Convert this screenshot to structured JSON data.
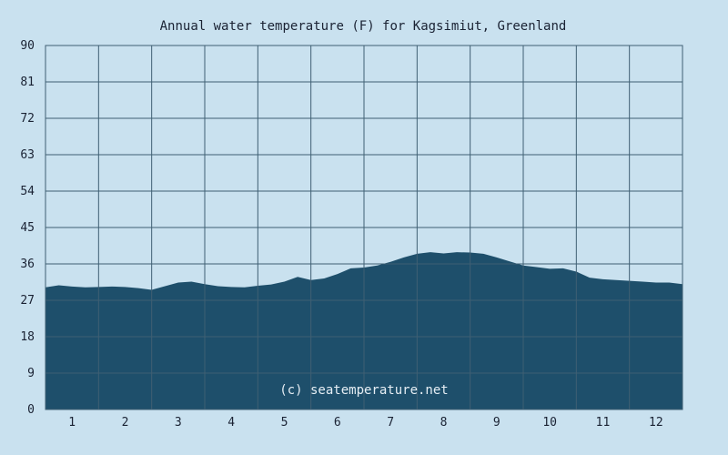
{
  "colors": {
    "background": "#c9e1ef",
    "area_fill": "#1e4f6b",
    "grid": "#3f5f73",
    "text": "#1a2233",
    "watermark": "#e6eef4"
  },
  "watermark": "(c) seatemperature.net",
  "chart_data": {
    "type": "area",
    "title": "Annual water temperature (F) for Kagsimiut, Greenland",
    "xlabel": "",
    "ylabel": "",
    "ylim": [
      0,
      90
    ],
    "xlim": [
      0.5,
      12.5
    ],
    "yticks": [
      0,
      9,
      18,
      27,
      36,
      45,
      54,
      63,
      72,
      81,
      90
    ],
    "yticklabels": [
      "0",
      "9",
      "18",
      "27",
      "36",
      "45",
      "54",
      "63",
      "72",
      "81",
      "90"
    ],
    "xticks": [
      1,
      2,
      3,
      4,
      5,
      6,
      7,
      8,
      9,
      10,
      11,
      12
    ],
    "xticklabels": [
      "1",
      "2",
      "3",
      "4",
      "5",
      "6",
      "7",
      "8",
      "9",
      "10",
      "11",
      "12"
    ],
    "grid": true,
    "legend": "none",
    "series": [
      {
        "x": [
          0.5,
          0.75,
          1.0,
          1.25,
          1.5,
          1.75,
          2.0,
          2.25,
          2.5,
          2.75,
          3.0,
          3.25,
          3.5,
          3.75,
          4.0,
          4.25,
          4.5,
          4.75,
          5.0,
          5.25,
          5.5,
          5.75,
          6.0,
          6.25,
          6.5,
          6.75,
          7.0,
          7.25,
          7.5,
          7.75,
          8.0,
          8.25,
          8.5,
          8.75,
          9.0,
          9.25,
          9.5,
          9.75,
          10.0,
          10.25,
          10.5,
          10.75,
          11.0,
          11.25,
          11.5,
          11.75,
          12.0,
          12.25,
          12.5
        ],
        "values": [
          30.2,
          30.7,
          30.4,
          30.2,
          30.3,
          30.4,
          30.3,
          30.0,
          29.6,
          30.5,
          31.4,
          31.6,
          31.0,
          30.5,
          30.3,
          30.2,
          30.6,
          30.9,
          31.6,
          32.8,
          32.0,
          32.4,
          33.5,
          34.9,
          35.1,
          35.6,
          36.5,
          37.6,
          38.5,
          38.9,
          38.6,
          38.9,
          38.8,
          38.5,
          37.6,
          36.6,
          35.6,
          35.2,
          34.8,
          34.9,
          34.1,
          32.6,
          32.2,
          32.0,
          31.8,
          31.6,
          31.4,
          31.4,
          31.0
        ]
      }
    ]
  }
}
